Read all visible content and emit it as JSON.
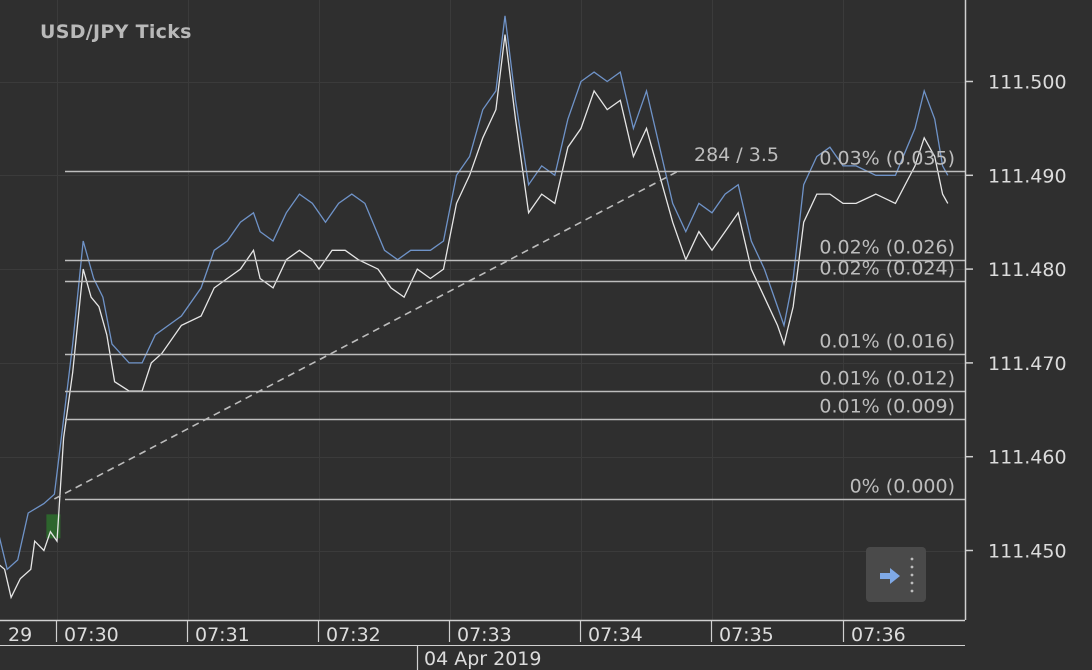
{
  "header": {
    "title": "USD/JPY  Ticks"
  },
  "colors": {
    "bg": "#2f2f2f",
    "grid": "#3b3b3b",
    "text": "#dcdcdc",
    "bid": "#e6e6e6",
    "ask": "#6f93c8",
    "fib": "#bdbdbd",
    "axis": "#d0d0d0"
  },
  "chart_data": {
    "type": "line",
    "symbol": "USD/JPY",
    "timeframe": "Ticks",
    "date_label": "04 Apr 2019",
    "x_ticks": [
      "29",
      "07:30",
      "07:31",
      "07:32",
      "07:33",
      "07:34",
      "07:35",
      "07:36"
    ],
    "y_ticks": [
      "111.450",
      "111.460",
      "111.470",
      "111.480",
      "111.490",
      "111.500"
    ],
    "ylim": [
      111.443,
      111.507
    ],
    "xlim_minutes": [
      29.43,
      36.94
    ],
    "series": [
      {
        "name": "",
        "color": "#e6e6e6",
        "points": [
          [
            29.43,
            111.45
          ],
          [
            29.6,
            111.448
          ],
          [
            29.65,
            111.445
          ],
          [
            29.72,
            111.447
          ],
          [
            29.8,
            111.448
          ],
          [
            29.83,
            111.451
          ],
          [
            29.9,
            111.45
          ],
          [
            29.95,
            111.452
          ],
          [
            30.0,
            111.451
          ],
          [
            30.05,
            111.462
          ],
          [
            30.12,
            111.469
          ],
          [
            30.2,
            111.48
          ],
          [
            30.26,
            111.477
          ],
          [
            30.32,
            111.476
          ],
          [
            30.38,
            111.473
          ],
          [
            30.44,
            111.468
          ],
          [
            30.55,
            111.467
          ],
          [
            30.65,
            111.467
          ],
          [
            30.72,
            111.47
          ],
          [
            30.8,
            111.471
          ],
          [
            30.95,
            111.474
          ],
          [
            31.1,
            111.475
          ],
          [
            31.2,
            111.478
          ],
          [
            31.3,
            111.479
          ],
          [
            31.4,
            111.48
          ],
          [
            31.5,
            111.482
          ],
          [
            31.55,
            111.479
          ],
          [
            31.65,
            111.478
          ],
          [
            31.75,
            111.481
          ],
          [
            31.85,
            111.482
          ],
          [
            31.95,
            111.481
          ],
          [
            32.0,
            111.48
          ],
          [
            32.1,
            111.482
          ],
          [
            32.2,
            111.482
          ],
          [
            32.3,
            111.481
          ],
          [
            32.45,
            111.48
          ],
          [
            32.55,
            111.478
          ],
          [
            32.65,
            111.477
          ],
          [
            32.75,
            111.48
          ],
          [
            32.85,
            111.479
          ],
          [
            32.95,
            111.48
          ],
          [
            33.05,
            111.487
          ],
          [
            33.15,
            111.49
          ],
          [
            33.25,
            111.494
          ],
          [
            33.35,
            111.497
          ],
          [
            33.42,
            111.505
          ],
          [
            33.5,
            111.496
          ],
          [
            33.6,
            111.486
          ],
          [
            33.7,
            111.488
          ],
          [
            33.8,
            111.487
          ],
          [
            33.9,
            111.493
          ],
          [
            34.0,
            111.495
          ],
          [
            34.1,
            111.499
          ],
          [
            34.2,
            111.497
          ],
          [
            34.3,
            111.498
          ],
          [
            34.4,
            111.492
          ],
          [
            34.5,
            111.495
          ],
          [
            34.6,
            111.49
          ],
          [
            34.7,
            111.485
          ],
          [
            34.8,
            111.481
          ],
          [
            34.9,
            111.484
          ],
          [
            35.0,
            111.482
          ],
          [
            35.1,
            111.484
          ],
          [
            35.2,
            111.486
          ],
          [
            35.3,
            111.48
          ],
          [
            35.4,
            111.477
          ],
          [
            35.5,
            111.474
          ],
          [
            35.55,
            111.472
          ],
          [
            35.62,
            111.476
          ],
          [
            35.7,
            111.485
          ],
          [
            35.8,
            111.488
          ],
          [
            35.9,
            111.488
          ],
          [
            36.0,
            111.487
          ],
          [
            36.1,
            111.487
          ],
          [
            36.25,
            111.488
          ],
          [
            36.4,
            111.487
          ],
          [
            36.55,
            111.491
          ],
          [
            36.62,
            111.494
          ],
          [
            36.7,
            111.492
          ],
          [
            36.76,
            111.488
          ],
          [
            36.8,
            111.487
          ]
        ]
      },
      {
        "name": "",
        "color": "#6f93c8",
        "points": [
          [
            29.43,
            111.453
          ],
          [
            29.55,
            111.452
          ],
          [
            29.62,
            111.448
          ],
          [
            29.7,
            111.449
          ],
          [
            29.78,
            111.454
          ],
          [
            29.9,
            111.455
          ],
          [
            29.98,
            111.456
          ],
          [
            30.05,
            111.464
          ],
          [
            30.12,
            111.472
          ],
          [
            30.2,
            111.483
          ],
          [
            30.28,
            111.479
          ],
          [
            30.35,
            111.477
          ],
          [
            30.42,
            111.472
          ],
          [
            30.55,
            111.47
          ],
          [
            30.65,
            111.47
          ],
          [
            30.75,
            111.473
          ],
          [
            30.85,
            111.474
          ],
          [
            30.95,
            111.475
          ],
          [
            31.1,
            111.478
          ],
          [
            31.2,
            111.482
          ],
          [
            31.3,
            111.483
          ],
          [
            31.4,
            111.485
          ],
          [
            31.5,
            111.486
          ],
          [
            31.55,
            111.484
          ],
          [
            31.65,
            111.483
          ],
          [
            31.75,
            111.486
          ],
          [
            31.85,
            111.488
          ],
          [
            31.95,
            111.487
          ],
          [
            32.05,
            111.485
          ],
          [
            32.15,
            111.487
          ],
          [
            32.25,
            111.488
          ],
          [
            32.35,
            111.487
          ],
          [
            32.5,
            111.482
          ],
          [
            32.6,
            111.481
          ],
          [
            32.7,
            111.482
          ],
          [
            32.85,
            111.482
          ],
          [
            32.95,
            111.483
          ],
          [
            33.05,
            111.49
          ],
          [
            33.15,
            111.492
          ],
          [
            33.25,
            111.497
          ],
          [
            33.35,
            111.499
          ],
          [
            33.42,
            111.507
          ],
          [
            33.5,
            111.498
          ],
          [
            33.6,
            111.489
          ],
          [
            33.7,
            111.491
          ],
          [
            33.8,
            111.49
          ],
          [
            33.9,
            111.496
          ],
          [
            34.0,
            111.5
          ],
          [
            34.1,
            111.501
          ],
          [
            34.2,
            111.5
          ],
          [
            34.3,
            111.501
          ],
          [
            34.4,
            111.495
          ],
          [
            34.5,
            111.499
          ],
          [
            34.6,
            111.493
          ],
          [
            34.7,
            111.487
          ],
          [
            34.8,
            111.484
          ],
          [
            34.9,
            111.487
          ],
          [
            35.0,
            111.486
          ],
          [
            35.1,
            111.488
          ],
          [
            35.2,
            111.489
          ],
          [
            35.3,
            111.483
          ],
          [
            35.4,
            111.48
          ],
          [
            35.5,
            111.476
          ],
          [
            35.55,
            111.474
          ],
          [
            35.62,
            111.479
          ],
          [
            35.7,
            111.489
          ],
          [
            35.8,
            111.492
          ],
          [
            35.9,
            111.493
          ],
          [
            36.0,
            111.491
          ],
          [
            36.1,
            111.491
          ],
          [
            36.25,
            111.49
          ],
          [
            36.4,
            111.49
          ],
          [
            36.55,
            111.495
          ],
          [
            36.62,
            111.499
          ],
          [
            36.7,
            111.496
          ],
          [
            36.76,
            111.491
          ],
          [
            36.8,
            111.49
          ]
        ]
      }
    ],
    "fibonacci": {
      "measure_label": "284 / 3.5",
      "from": [
        29.98,
        111.4555
      ],
      "to": [
        34.75,
        111.4905
      ],
      "levels": [
        {
          "price": 111.4905,
          "label": "0.03% (0.035)"
        },
        {
          "price": 111.481,
          "label": "0.02% (0.026)"
        },
        {
          "price": 111.4787,
          "label": "0.02% (0.024)"
        },
        {
          "price": 111.4709,
          "label": "0.01% (0.016)"
        },
        {
          "price": 111.467,
          "label": "0.01% (0.012)"
        },
        {
          "price": 111.464,
          "label": "0.01% (0.009)"
        },
        {
          "price": 111.4555,
          "label": "0% (0.000)"
        }
      ]
    },
    "grid": true,
    "legend": "none"
  }
}
